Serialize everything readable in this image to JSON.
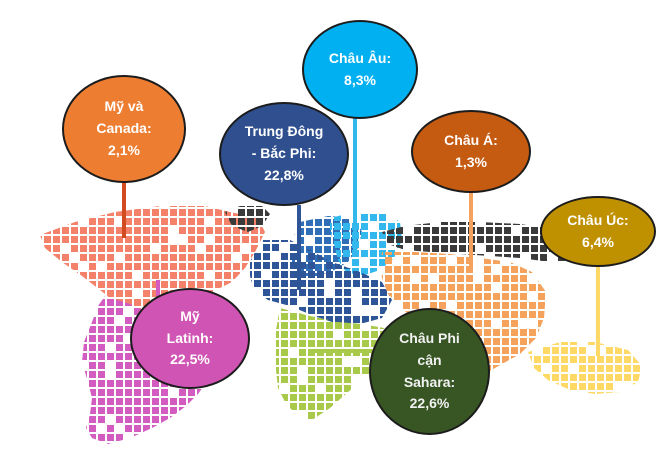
{
  "regions": [
    {
      "key": "na",
      "label": "Mỹ và\nCanada:\n2,1%",
      "region": "Mỹ và Canada",
      "share_percent": 2.1,
      "color": "#ED7D31"
    },
    {
      "key": "me",
      "label": "Trung Đông\n- Bắc Phi:\n22,8%",
      "region": "Trung Đông - Bắc Phi",
      "share_percent": 22.8,
      "color": "#2F4F8F"
    },
    {
      "key": "eu",
      "label": "Châu Âu:\n8,3%",
      "region": "Châu Âu",
      "share_percent": 8.3,
      "color": "#00B0F0"
    },
    {
      "key": "as",
      "label": "Châu Á:\n1,3%",
      "region": "Châu Á",
      "share_percent": 1.3,
      "color": "#C55A11"
    },
    {
      "key": "au",
      "label": "Châu Úc:\n6,4%",
      "region": "Châu Úc",
      "share_percent": 6.4,
      "color": "#BF9000"
    },
    {
      "key": "la",
      "label": "Mỹ\nLatinh:\n22,5%",
      "region": "Mỹ Latinh",
      "share_percent": 22.5,
      "color": "#D054B4"
    },
    {
      "key": "af",
      "label": "Châu Phi\ncận\nSahara:\n22,6%",
      "region": "Châu Phi cận Sahara",
      "share_percent": 22.6,
      "color": "#375623"
    }
  ],
  "map_colors": {
    "north_america": "#F4826B",
    "latin_america": "#D35CC0",
    "europe": "#33B8EE",
    "europe_west": "#2E6FB8",
    "middle_east": "#2E5597",
    "africa": "#A8C94A",
    "asia_north": "#3A3A3A",
    "asia_south": "#F5A25C",
    "oceania": "#FFD966",
    "arctic": "#3A3A3A"
  },
  "connector_colors": {
    "na": "#D24A1F",
    "me": "#2E5597",
    "eu": "#33B8EE",
    "as": "#F5A25C",
    "au": "#FFD966",
    "la": "#D35CC0",
    "af": "#A8C94A"
  }
}
